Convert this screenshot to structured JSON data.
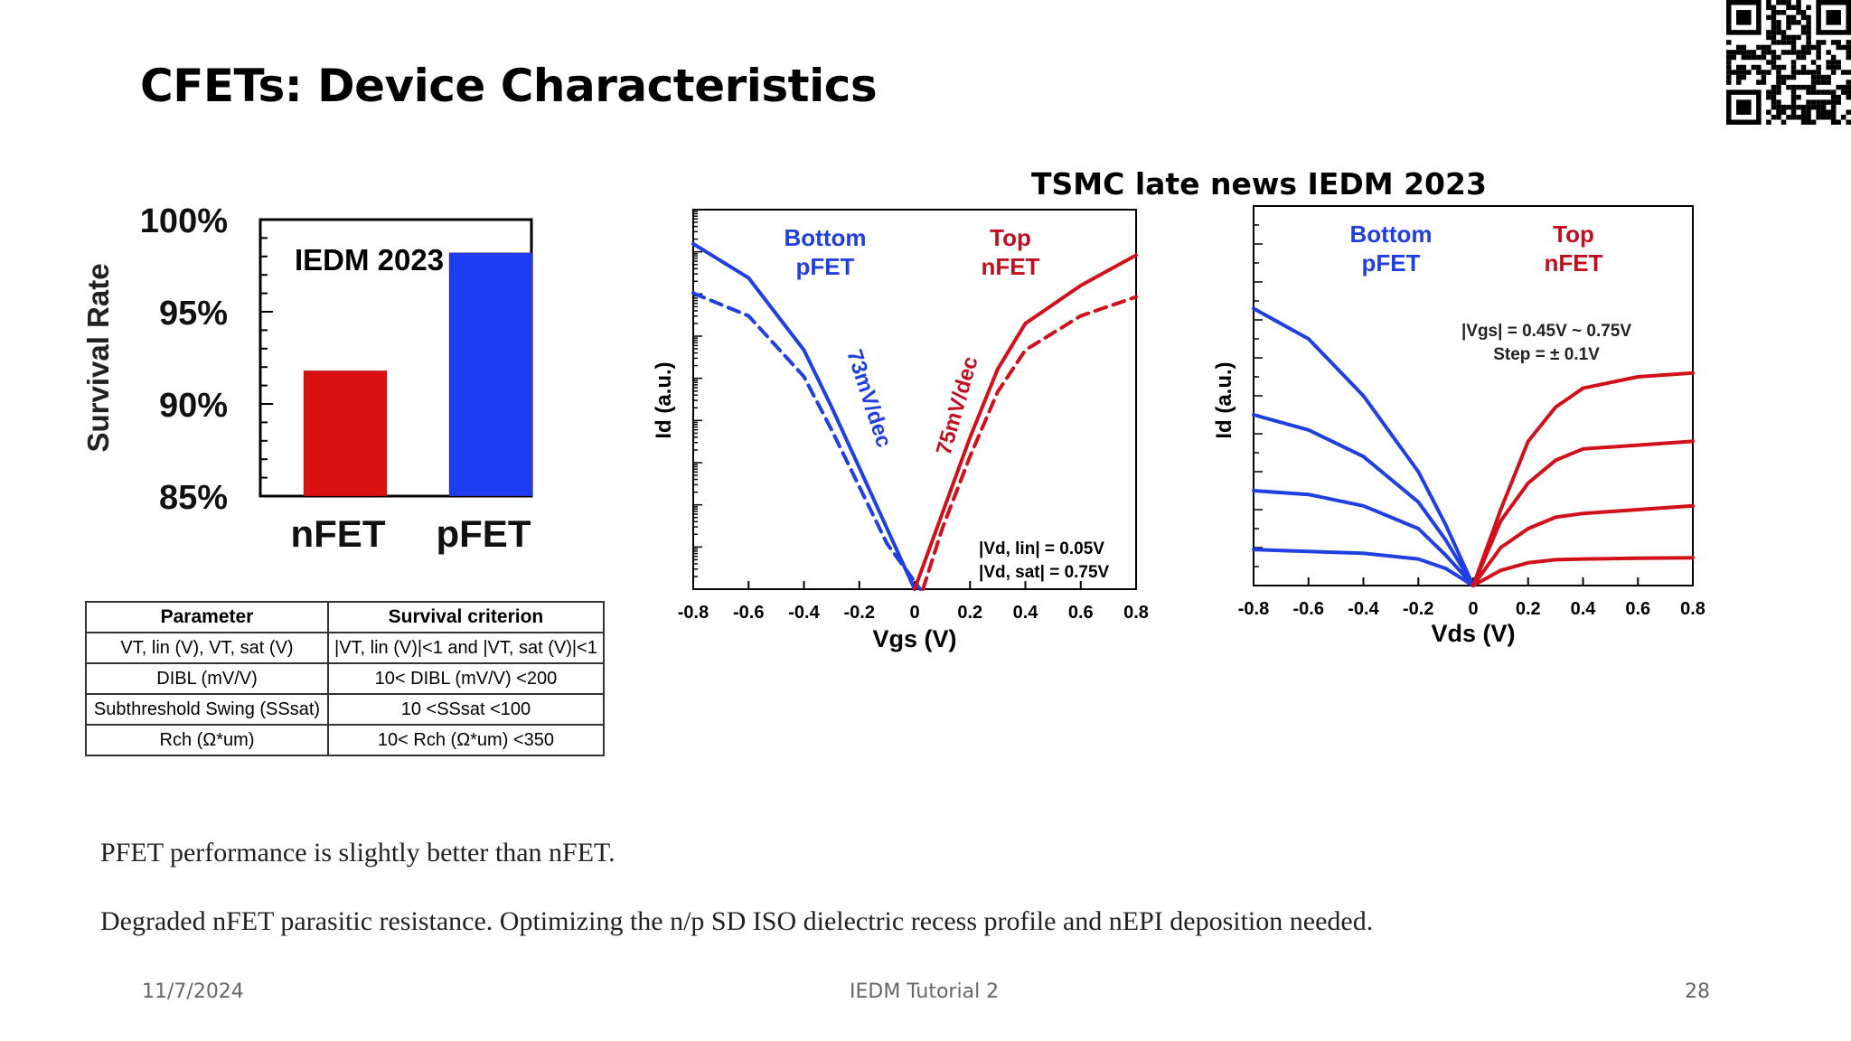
{
  "slide": {
    "title": "CFETs: Device Characteristics",
    "source_label": "TSMC late news IEDM 2023",
    "notes": [
      "PFET performance is slightly better than nFET.",
      "Degraded nFET parasitic resistance. Optimizing the n/p SD ISO dielectric recess profile and nEPI deposition needed."
    ],
    "footer": {
      "date": "11/7/2024",
      "center": "IEDM Tutorial 2",
      "page": "28"
    }
  },
  "table": {
    "headers": [
      "Parameter",
      "Survival criterion"
    ],
    "rows": [
      [
        "VT, lin (V), VT, sat (V)",
        "|VT, lin (V)|<1 and |VT, sat (V)|<1"
      ],
      [
        "DIBL (mV/V)",
        "10< DIBL (mV/V) <200"
      ],
      [
        "Subthreshold Swing (SSsat)",
        "10 <SSsat <100"
      ],
      [
        "Rch (Ω*um)",
        "10< Rch (Ω*um) <350"
      ]
    ]
  },
  "colors": {
    "nfet": "#d0101a",
    "pfet": "#1f3fe0",
    "bar_n": "#d81010",
    "bar_p": "#1e3cf0"
  },
  "chart_data": [
    {
      "type": "bar",
      "annotation": "IEDM 2023",
      "categories": [
        "nFET",
        "pFET"
      ],
      "values": [
        91.8,
        98.2
      ],
      "ylabel": "Survival Rate",
      "ylim": [
        85,
        100
      ],
      "yticks": [
        "85%",
        "90%",
        "95%",
        "100%"
      ],
      "grid": false
    },
    {
      "type": "line",
      "xlabel": "Vgs (V)",
      "ylabel": "Id (a.u.)",
      "xlim": [
        -0.8,
        0.8
      ],
      "xticks": [
        "-0.8",
        "-0.6",
        "-0.4",
        "-0.2",
        "0",
        "0.2",
        "0.4",
        "0.6",
        "0.8"
      ],
      "y_scale": "log",
      "group_labels": [
        {
          "line1": "Bottom",
          "line2": "pFET"
        },
        {
          "line1": "Top",
          "line2": "nFET"
        }
      ],
      "slope_labels": [
        "73mV/dec",
        "75mV/dec"
      ],
      "conditions": [
        "|Vd, lin| = 0.05V",
        "|Vd, sat| = 0.75V"
      ],
      "series": [
        {
          "group": "pfet",
          "style": "solid",
          "x": [
            -0.8,
            -0.6,
            -0.4,
            -0.3,
            -0.2,
            -0.1,
            0.0
          ],
          "y": [
            0.91,
            0.82,
            0.63,
            0.48,
            0.32,
            0.16,
            0.0
          ]
        },
        {
          "group": "pfet",
          "style": "dashed",
          "x": [
            -0.8,
            -0.6,
            -0.4,
            -0.3,
            -0.2,
            -0.1,
            0.02
          ],
          "y": [
            0.78,
            0.72,
            0.56,
            0.42,
            0.27,
            0.12,
            0.0
          ]
        },
        {
          "group": "nfet",
          "style": "solid",
          "x": [
            0.0,
            0.1,
            0.2,
            0.3,
            0.4,
            0.6,
            0.8
          ],
          "y": [
            0.0,
            0.2,
            0.4,
            0.58,
            0.7,
            0.8,
            0.88
          ]
        },
        {
          "group": "nfet",
          "style": "dashed",
          "x": [
            0.03,
            0.1,
            0.2,
            0.3,
            0.4,
            0.6,
            0.8
          ],
          "y": [
            0.0,
            0.16,
            0.35,
            0.52,
            0.63,
            0.72,
            0.77
          ]
        }
      ]
    },
    {
      "type": "line",
      "xlabel": "Vds (V)",
      "ylabel": "Id (a.u.)",
      "xlim": [
        -0.8,
        0.8
      ],
      "xticks": [
        "-0.8",
        "-0.6",
        "-0.4",
        "-0.2",
        "0",
        "0.2",
        "0.4",
        "0.6",
        "0.8"
      ],
      "group_labels": [
        {
          "line1": "Bottom",
          "line2": "pFET"
        },
        {
          "line1": "Top",
          "line2": "nFET"
        }
      ],
      "conditions": [
        "|Vgs| = 0.45V ~ 0.75V",
        "Step = ± 0.1V"
      ],
      "series": [
        {
          "group": "pfet",
          "x": [
            -0.8,
            -0.6,
            -0.4,
            -0.2,
            -0.1,
            0.0
          ],
          "y": [
            0.73,
            0.65,
            0.5,
            0.3,
            0.16,
            0.0
          ]
        },
        {
          "group": "pfet",
          "x": [
            -0.8,
            -0.6,
            -0.4,
            -0.2,
            -0.1,
            0.0
          ],
          "y": [
            0.45,
            0.41,
            0.34,
            0.22,
            0.12,
            0.0
          ]
        },
        {
          "group": "pfet",
          "x": [
            -0.8,
            -0.6,
            -0.4,
            -0.2,
            -0.1,
            0.0
          ],
          "y": [
            0.25,
            0.24,
            0.21,
            0.15,
            0.08,
            0.0
          ]
        },
        {
          "group": "pfet",
          "x": [
            -0.8,
            -0.6,
            -0.4,
            -0.2,
            -0.1,
            0.0
          ],
          "y": [
            0.095,
            0.09,
            0.085,
            0.07,
            0.045,
            0.0
          ]
        },
        {
          "group": "nfet",
          "x": [
            0.0,
            0.1,
            0.2,
            0.3,
            0.4,
            0.6,
            0.8
          ],
          "y": [
            0.0,
            0.2,
            0.38,
            0.47,
            0.52,
            0.55,
            0.56
          ]
        },
        {
          "group": "nfet",
          "x": [
            0.0,
            0.1,
            0.2,
            0.3,
            0.4,
            0.6,
            0.8
          ],
          "y": [
            0.0,
            0.17,
            0.27,
            0.33,
            0.36,
            0.37,
            0.38
          ]
        },
        {
          "group": "nfet",
          "x": [
            0.0,
            0.1,
            0.2,
            0.3,
            0.4,
            0.6,
            0.8
          ],
          "y": [
            0.0,
            0.1,
            0.15,
            0.18,
            0.19,
            0.2,
            0.21
          ]
        },
        {
          "group": "nfet",
          "x": [
            0.0,
            0.1,
            0.2,
            0.3,
            0.4,
            0.6,
            0.8
          ],
          "y": [
            0.0,
            0.04,
            0.06,
            0.068,
            0.07,
            0.072,
            0.073
          ]
        }
      ]
    }
  ]
}
